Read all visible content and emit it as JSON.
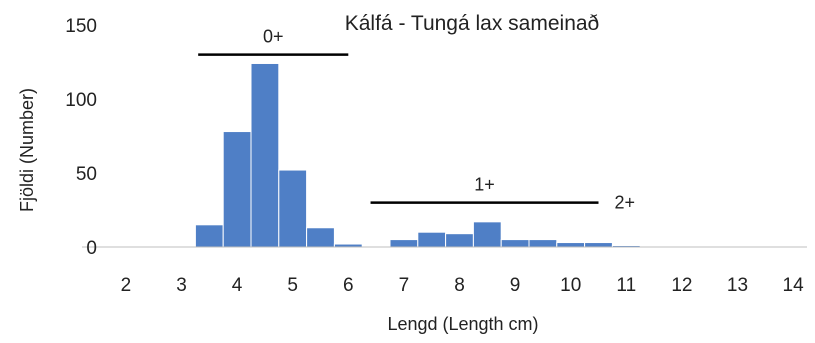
{
  "chart_data": {
    "type": "bar",
    "title": "Kálfá - Tungá  lax sameinað",
    "xlabel": "Lengd (Length cm)",
    "ylabel": "Fjöldi (Number)",
    "xlim": [
      1.75,
      14.25
    ],
    "ylim": [
      0,
      150
    ],
    "x_ticks": [
      2,
      3,
      4,
      5,
      6,
      7,
      8,
      9,
      10,
      11,
      12,
      13,
      14
    ],
    "y_ticks": [
      0,
      50,
      100,
      150
    ],
    "bin_width": 0.5,
    "bar_color": "#4F7FC6",
    "grid": false,
    "legend": "none",
    "bins": [
      {
        "x": 3.5,
        "value": 15
      },
      {
        "x": 4.0,
        "value": 78
      },
      {
        "x": 4.5,
        "value": 124
      },
      {
        "x": 5.0,
        "value": 52
      },
      {
        "x": 5.5,
        "value": 13
      },
      {
        "x": 6.0,
        "value": 2
      },
      {
        "x": 6.5,
        "value": 0
      },
      {
        "x": 7.0,
        "value": 5
      },
      {
        "x": 7.5,
        "value": 10
      },
      {
        "x": 8.0,
        "value": 9
      },
      {
        "x": 8.5,
        "value": 17
      },
      {
        "x": 9.0,
        "value": 5
      },
      {
        "x": 9.5,
        "value": 5
      },
      {
        "x": 10.0,
        "value": 3
      },
      {
        "x": 10.5,
        "value": 3
      },
      {
        "x": 11.0,
        "value": 1
      }
    ],
    "annotations": [
      {
        "label": "0+",
        "from_x": 3.3,
        "to_x": 6.0,
        "y": 130
      },
      {
        "label": "1+",
        "from_x": 6.4,
        "to_x": 10.5,
        "y": 30
      },
      {
        "label": "2+",
        "from_x": 10.5,
        "to_x": 10.5,
        "y": 30
      }
    ]
  }
}
